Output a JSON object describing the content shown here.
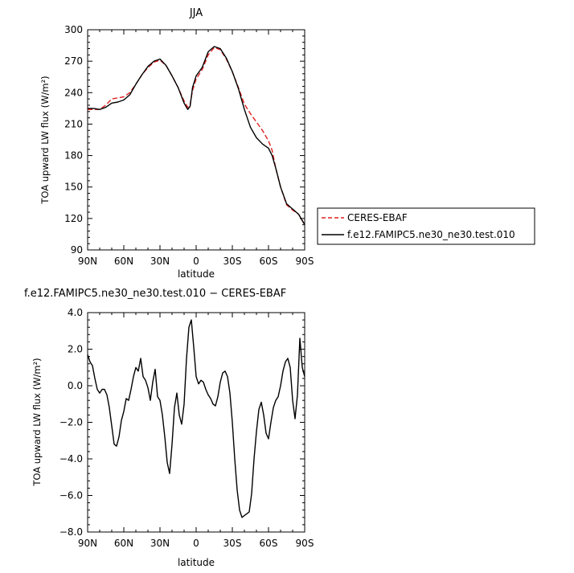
{
  "chart_data": [
    {
      "type": "line",
      "title": "JJA",
      "xlabel": "latitude",
      "ylabel": "TOA upward LW flux (W/m²)",
      "xlim": [
        90,
        -90
      ],
      "ylim": [
        90,
        300
      ],
      "xticks": [
        {
          "value": 90,
          "label": "90N"
        },
        {
          "value": 60,
          "label": "60N"
        },
        {
          "value": 30,
          "label": "30N"
        },
        {
          "value": 0,
          "label": "0"
        },
        {
          "value": -30,
          "label": "30S"
        },
        {
          "value": -60,
          "label": "60S"
        },
        {
          "value": -90,
          "label": "90S"
        }
      ],
      "yticks": [
        90,
        120,
        150,
        180,
        210,
        240,
        270,
        300
      ],
      "ytick_labels": [
        "90",
        "120",
        "150",
        "180",
        "210",
        "240",
        "270",
        "300"
      ],
      "legend_position": "right",
      "series": [
        {
          "name": "CERES-EBAF",
          "color": "#e02020",
          "dash": "dashed",
          "x": [
            90,
            85,
            80,
            75,
            70,
            65,
            60,
            55,
            50,
            45,
            40,
            35,
            30,
            25,
            20,
            15,
            10,
            7,
            5,
            3,
            0,
            -5,
            -10,
            -15,
            -20,
            -25,
            -30,
            -35,
            -40,
            -45,
            -50,
            -55,
            -60,
            -63,
            -66,
            -70,
            -75,
            -80,
            -85,
            -90
          ],
          "values": [
            224,
            224,
            224,
            228,
            234,
            235,
            236,
            240,
            248,
            257,
            264,
            269,
            271,
            266,
            256,
            245,
            232,
            226,
            229,
            242,
            253,
            262,
            276,
            283,
            281,
            272,
            260,
            245,
            229,
            220,
            212,
            204,
            194,
            185,
            168,
            150,
            133,
            128,
            124,
            114
          ]
        },
        {
          "name": "f.e12.FAMIPC5.ne30_ne30.test.010",
          "color": "#000000",
          "dash": "solid",
          "x": [
            90,
            85,
            80,
            75,
            70,
            65,
            60,
            55,
            50,
            45,
            40,
            35,
            30,
            25,
            20,
            15,
            10,
            7,
            5,
            3,
            0,
            -5,
            -10,
            -15,
            -20,
            -25,
            -30,
            -35,
            -40,
            -45,
            -50,
            -55,
            -60,
            -63,
            -66,
            -70,
            -75,
            -80,
            -85,
            -90
          ],
          "values": [
            225,
            225,
            224,
            226,
            230,
            231,
            233,
            238,
            248,
            257,
            265,
            270,
            272,
            266,
            256,
            245,
            230,
            224,
            227,
            245,
            256,
            264,
            279,
            284,
            282,
            273,
            260,
            244,
            224,
            207,
            197,
            191,
            187,
            180,
            168,
            150,
            134,
            129,
            124,
            114
          ]
        }
      ]
    },
    {
      "type": "line",
      "title": "f.e12.FAMIPC5.ne30_ne30.test.010 − CERES-EBAF",
      "xlabel": "latitude",
      "ylabel": "TOA upward LW flux (W/m²)",
      "xlim": [
        90,
        -90
      ],
      "ylim": [
        -8,
        4
      ],
      "xticks": [
        {
          "value": 90,
          "label": "90N"
        },
        {
          "value": 60,
          "label": "60N"
        },
        {
          "value": 30,
          "label": "30N"
        },
        {
          "value": 0,
          "label": "0"
        },
        {
          "value": -30,
          "label": "30S"
        },
        {
          "value": -60,
          "label": "60S"
        },
        {
          "value": -90,
          "label": "90S"
        }
      ],
      "yticks": [
        -8,
        -6,
        -4,
        -2,
        0,
        2,
        4
      ],
      "ytick_labels": [
        "−8.0",
        "−6.0",
        "−4.0",
        "−2.0",
        "0.0",
        "2.0",
        "4.0"
      ],
      "series": [
        {
          "name": "",
          "color": "#000000",
          "dash": "solid",
          "x": [
            90,
            88,
            86,
            84,
            82,
            80,
            78,
            76,
            74,
            72,
            70,
            68,
            66,
            64,
            62,
            60,
            58,
            56,
            54,
            52,
            50,
            48,
            46,
            44,
            42,
            40,
            38,
            36,
            34,
            32,
            30,
            28,
            26,
            24,
            22,
            20,
            18,
            16,
            14,
            12,
            10,
            8,
            6,
            4,
            2,
            0,
            -2,
            -4,
            -6,
            -8,
            -10,
            -12,
            -14,
            -16,
            -18,
            -20,
            -22,
            -24,
            -26,
            -28,
            -30,
            -32,
            -34,
            -36,
            -38,
            -40,
            -42,
            -44,
            -46,
            -48,
            -50,
            -52,
            -54,
            -56,
            -58,
            -60,
            -62,
            -64,
            -66,
            -68,
            -70,
            -72,
            -74,
            -76,
            -78,
            -80,
            -82,
            -84,
            -86,
            -88,
            -90
          ],
          "values": [
            1.7,
            1.3,
            1.1,
            0.4,
            -0.2,
            -0.4,
            -0.2,
            -0.2,
            -0.5,
            -1.2,
            -2.2,
            -3.2,
            -3.3,
            -2.8,
            -1.9,
            -1.4,
            -0.7,
            -0.8,
            -0.2,
            0.5,
            1.0,
            0.8,
            1.5,
            0.5,
            0.3,
            -0.1,
            -0.8,
            0.2,
            0.9,
            -0.6,
            -0.8,
            -1.6,
            -2.8,
            -4.2,
            -4.8,
            -3.2,
            -1.2,
            -0.4,
            -1.6,
            -2.1,
            -1.0,
            1.5,
            3.2,
            3.6,
            2.1,
            0.5,
            0.1,
            0.3,
            0.2,
            -0.2,
            -0.5,
            -0.7,
            -1.0,
            -1.1,
            -0.6,
            0.2,
            0.7,
            0.8,
            0.5,
            -0.4,
            -2.0,
            -4.0,
            -5.7,
            -6.8,
            -7.2,
            -7.1,
            -7.0,
            -6.9,
            -5.9,
            -4.0,
            -2.5,
            -1.3,
            -0.9,
            -1.6,
            -2.6,
            -2.9,
            -2.0,
            -1.2,
            -0.8,
            -0.6,
            0.0,
            0.8,
            1.3,
            1.5,
            1.0,
            -0.8,
            -1.8,
            -0.5,
            2.6,
            1.0,
            0.5
          ]
        }
      ]
    }
  ]
}
